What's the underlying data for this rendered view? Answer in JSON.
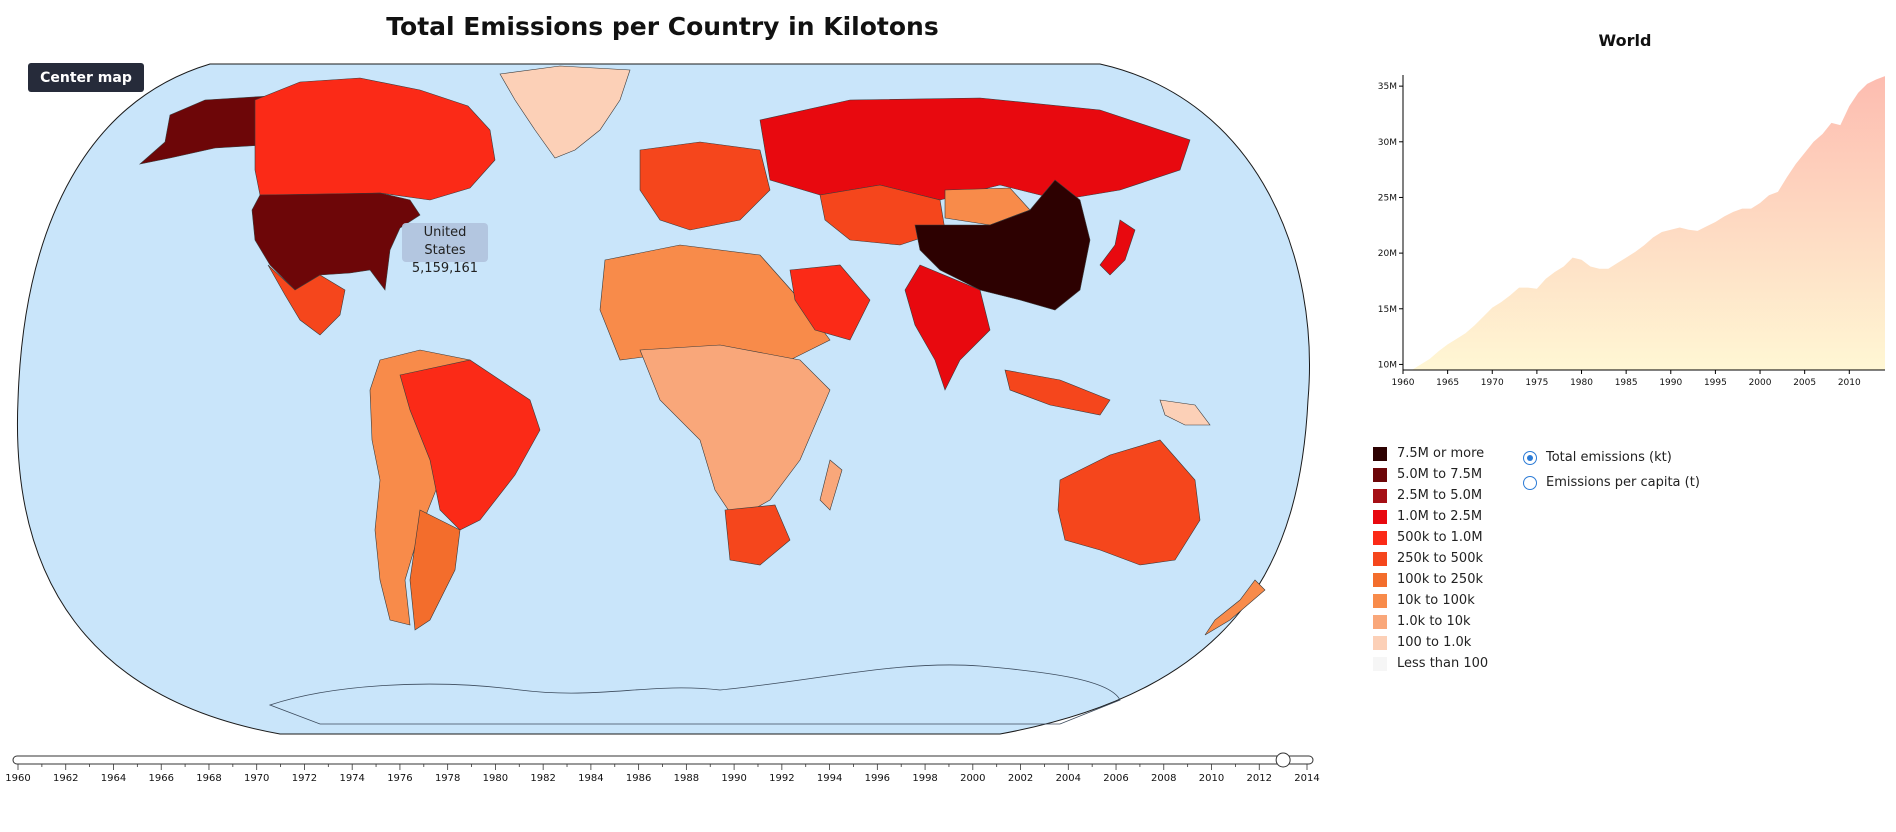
{
  "header": {
    "title": "Total Emissions per Country in Kilotons"
  },
  "controls": {
    "center_map_label": "Center map"
  },
  "tooltip": {
    "country": "United States",
    "value": "5,159,161"
  },
  "colors": {
    "ocean": "#c9e5fa",
    "graticule_stroke": "#1a1a1a",
    "slider_track": "#ffffff",
    "world_area_top": "#fdbcb0",
    "world_area_bottom": "#fff7d4"
  },
  "countries": [
    {
      "name": "United States",
      "color": "#6d0608"
    },
    {
      "name": "Alaska (US)",
      "color": "#6d0608"
    },
    {
      "name": "Canada",
      "color": "#fb2a17"
    },
    {
      "name": "Greenland",
      "color": "#fcd0b7"
    },
    {
      "name": "Mexico",
      "color": "#f5461c"
    },
    {
      "name": "Brazil",
      "color": "#fb2a17"
    },
    {
      "name": "Argentina",
      "color": "#f36d2c"
    },
    {
      "name": "South America (other)",
      "color": "#f88b4a"
    },
    {
      "name": "Russia",
      "color": "#e8090f"
    },
    {
      "name": "China",
      "color": "#2d0101"
    },
    {
      "name": "India",
      "color": "#e8090f"
    },
    {
      "name": "Japan",
      "color": "#e8090f"
    },
    {
      "name": "Australia",
      "color": "#f5461c"
    },
    {
      "name": "Saudi Arabia",
      "color": "#fb2a17"
    },
    {
      "name": "South Africa",
      "color": "#f5461c"
    },
    {
      "name": "Western Europe",
      "color": "#f5461c"
    },
    {
      "name": "Africa (north)",
      "color": "#f88b4a"
    },
    {
      "name": "Africa (central)",
      "color": "#f9a77a"
    },
    {
      "name": "Indonesia",
      "color": "#f5461c"
    },
    {
      "name": "Kazakhstan",
      "color": "#f5461c"
    },
    {
      "name": "Mongolia",
      "color": "#f88b4a"
    },
    {
      "name": "Madagascar",
      "color": "#f9a77a"
    },
    {
      "name": "New Zealand",
      "color": "#f88b4a"
    },
    {
      "name": "Papua New Guinea",
      "color": "#fcd0b7"
    }
  ],
  "slider": {
    "min_year": 1960,
    "max_year": 2014,
    "selected_year": 2013,
    "tick_labels": [
      "1960",
      "1962",
      "1964",
      "1966",
      "1968",
      "1970",
      "1972",
      "1974",
      "1976",
      "1978",
      "1980",
      "1982",
      "1984",
      "1986",
      "1988",
      "1990",
      "1992",
      "1994",
      "1996",
      "1998",
      "2000",
      "2002",
      "2004",
      "2006",
      "2008",
      "2010",
      "2012",
      "2014"
    ]
  },
  "chart_data": {
    "type": "area",
    "title": "World",
    "xlabel": "",
    "ylabel": "",
    "xlim": [
      1960,
      2014
    ],
    "ylim": [
      9500000,
      36000000
    ],
    "x_ticks": [
      "1960",
      "1965",
      "1970",
      "1975",
      "1980",
      "1985",
      "1990",
      "1995",
      "2000",
      "2005",
      "2010"
    ],
    "y_ticks": [
      {
        "value": 10000000,
        "label": "10M"
      },
      {
        "value": 15000000,
        "label": "15M"
      },
      {
        "value": 20000000,
        "label": "20M"
      },
      {
        "value": 25000000,
        "label": "25M"
      },
      {
        "value": 30000000,
        "label": "30M"
      },
      {
        "value": 35000000,
        "label": "35M"
      }
    ],
    "x": [
      1960,
      1961,
      1962,
      1963,
      1964,
      1965,
      1966,
      1967,
      1968,
      1969,
      1970,
      1971,
      1972,
      1973,
      1974,
      1975,
      1976,
      1977,
      1978,
      1979,
      1980,
      1981,
      1982,
      1983,
      1984,
      1985,
      1986,
      1987,
      1988,
      1989,
      1990,
      1991,
      1992,
      1993,
      1994,
      1995,
      1996,
      1997,
      1998,
      1999,
      2000,
      2001,
      2002,
      2003,
      2004,
      2005,
      2006,
      2007,
      2008,
      2009,
      2010,
      2011,
      2012,
      2013,
      2014
    ],
    "values": [
      9400000,
      9500000,
      10000000,
      10500000,
      11200000,
      11800000,
      12300000,
      12800000,
      13500000,
      14300000,
      15100000,
      15600000,
      16200000,
      16900000,
      16900000,
      16800000,
      17700000,
      18300000,
      18800000,
      19600000,
      19400000,
      18800000,
      18600000,
      18600000,
      19100000,
      19600000,
      20100000,
      20700000,
      21400000,
      21900000,
      22100000,
      22300000,
      22100000,
      22000000,
      22400000,
      22800000,
      23300000,
      23700000,
      24000000,
      24000000,
      24500000,
      25200000,
      25500000,
      26800000,
      28000000,
      29000000,
      30000000,
      30700000,
      31700000,
      31500000,
      33200000,
      34400000,
      35200000,
      35600000,
      35900000
    ]
  },
  "legend": {
    "items": [
      {
        "label": "7.5M or more",
        "color": "#2d0101"
      },
      {
        "label": "5.0M to 7.5M",
        "color": "#6d0608"
      },
      {
        "label": "2.5M to 5.0M",
        "color": "#a50f15"
      },
      {
        "label": "1.0M to 2.5M",
        "color": "#e8090f"
      },
      {
        "label": "500k to 1.0M",
        "color": "#fb2a17"
      },
      {
        "label": "250k to 500k",
        "color": "#f5461c"
      },
      {
        "label": "100k to 250k",
        "color": "#f36d2c"
      },
      {
        "label": "10k to 100k",
        "color": "#f88b4a"
      },
      {
        "label": "1.0k to 10k",
        "color": "#f9a77a"
      },
      {
        "label": "100 to 1.0k",
        "color": "#fcd0b7"
      },
      {
        "label": "Less than 100",
        "color": "#f6f6f6"
      }
    ]
  },
  "radio": {
    "options": [
      {
        "label": "Total emissions (kt)",
        "selected": true
      },
      {
        "label": "Emissions per capita (t)",
        "selected": false
      }
    ]
  }
}
